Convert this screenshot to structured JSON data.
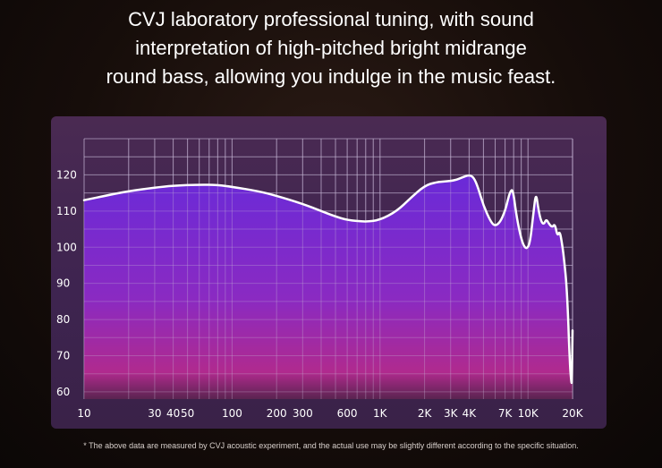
{
  "headline": {
    "line1": "CVJ laboratory professional tuning, with sound",
    "line2": "interpretation of high-pitched bright midrange",
    "line3": "round bass, allowing you indulge in the music feast."
  },
  "footnote": "* The above data are measured by CVJ acoustic experiment, and the actual use may be slightly different according to the specific situation.",
  "colors": {
    "curve": "#ffffff",
    "fill_top": "#6a2ad8",
    "fill_bottom": "#b02a8e",
    "grid": "#c8b8d8"
  },
  "chart_data": {
    "type": "area",
    "title": "",
    "xlabel": "",
    "ylabel": "",
    "xscale": "log",
    "xlim": [
      10,
      20000
    ],
    "ylim": [
      58,
      130
    ],
    "grid": true,
    "x_tick_labels": [
      {
        "label": "10",
        "value": 10
      },
      {
        "label": "30",
        "value": 30
      },
      {
        "label": "40",
        "value": 40
      },
      {
        "label": "50",
        "value": 50
      },
      {
        "label": "100",
        "value": 100
      },
      {
        "label": "200",
        "value": 200
      },
      {
        "label": "300",
        "value": 300
      },
      {
        "label": "600",
        "value": 600
      },
      {
        "label": "1K",
        "value": 1000
      },
      {
        "label": "2K",
        "value": 2000
      },
      {
        "label": "3K",
        "value": 3000
      },
      {
        "label": "4K",
        "value": 4000
      },
      {
        "label": "7K",
        "value": 7000
      },
      {
        "label": "10K",
        "value": 10000
      },
      {
        "label": "20K",
        "value": 20000
      }
    ],
    "y_tick_labels": [
      "60",
      "70",
      "80",
      "90",
      "100",
      "110",
      "120"
    ],
    "y_ticks": [
      60,
      70,
      80,
      90,
      100,
      110,
      120
    ],
    "series": [
      {
        "x": [
          10,
          15,
          20,
          30,
          40,
          60,
          80,
          100,
          150,
          200,
          300,
          400,
          500,
          600,
          800,
          1000,
          1300,
          1600,
          2000,
          2400,
          2800,
          3200,
          3600,
          4000,
          4300,
          4600,
          5000,
          5600,
          6000,
          6500,
          7000,
          7300,
          7600,
          7900,
          8300,
          8800,
          9300,
          9800,
          10300,
          10800,
          11300,
          11800,
          12300,
          12800,
          13300,
          14000,
          14600,
          15200,
          15800,
          16400,
          17000,
          17600,
          18200,
          18700,
          19000,
          19300,
          19600,
          19800,
          20000
        ],
        "y": [
          113,
          114.5,
          115.5,
          116.5,
          117,
          117.3,
          117.2,
          116.7,
          115.5,
          114.2,
          112,
          110,
          108.5,
          107.5,
          107,
          107.5,
          110,
          113.5,
          117,
          118,
          118.2,
          118.5,
          119.3,
          120,
          119.3,
          116.5,
          111.5,
          107,
          105.8,
          107,
          110,
          113,
          115.5,
          116,
          109.5,
          104,
          100.5,
          99.5,
          101,
          108,
          115.5,
          110,
          107,
          106.3,
          107.8,
          106.2,
          105.5,
          106.5,
          103,
          104.5,
          101,
          96,
          90,
          80,
          72,
          66,
          63,
          62,
          77
        ]
      }
    ]
  }
}
